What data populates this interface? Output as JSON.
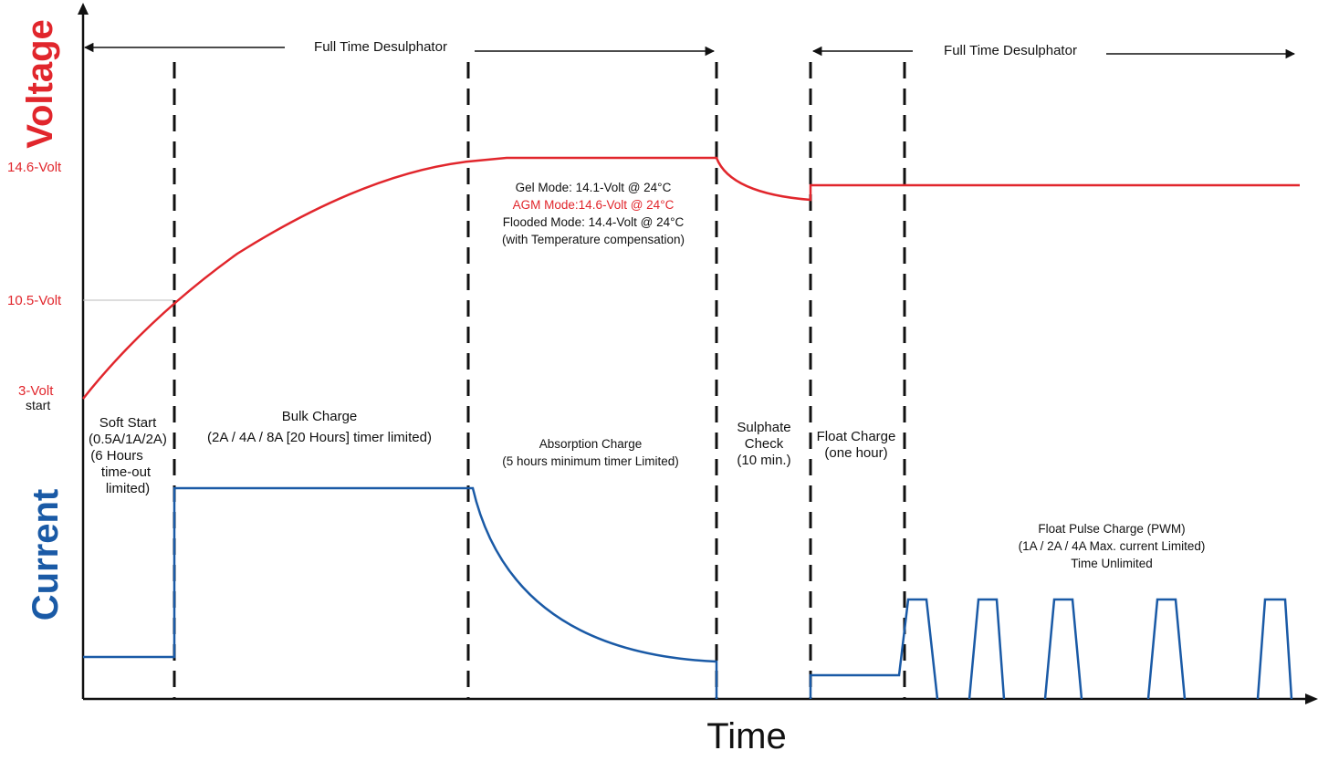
{
  "colors": {
    "voltage": "#e1262c",
    "current": "#1a5aa6",
    "axis": "#111111"
  },
  "axis": {
    "y_title_voltage": "Voltage",
    "y_title_current": "Current",
    "x_title": "Time"
  },
  "voltage_labels": {
    "v146": "14.6-Volt",
    "v105": "10.5-Volt",
    "v3": "3-Volt",
    "v3_sub": "start"
  },
  "desulphator": {
    "left": "Full Time Desulphator",
    "right": "Full Time Desulphator"
  },
  "modes": {
    "gel": "Gel Mode: 14.1-Volt @ 24°C",
    "agm": "AGM Mode:14.6-Volt @ 24°C",
    "flooded": "Flooded Mode: 14.4-Volt @ 24°C",
    "comp": "(with Temperature compensation)"
  },
  "stages": {
    "soft_start": [
      "Soft Start",
      "(0.5A/1A/2A)",
      "(6 Hours",
      "time-out",
      "limited)"
    ],
    "bulk": [
      "Bulk Charge",
      "(2A / 4A / 8A [20 Hours] timer limited)"
    ],
    "absorption": [
      "Absorption Charge",
      "(5 hours minimum timer Limited)"
    ],
    "sulphate": [
      "Sulphate",
      "Check",
      "(10 min.)"
    ],
    "float": [
      "Float Charge",
      "(one hour)"
    ],
    "float_pulse": [
      "Float Pulse Charge (PWM)",
      "(1A / 2A / 4A Max. current Limited)",
      "Time Unlimited"
    ]
  }
}
